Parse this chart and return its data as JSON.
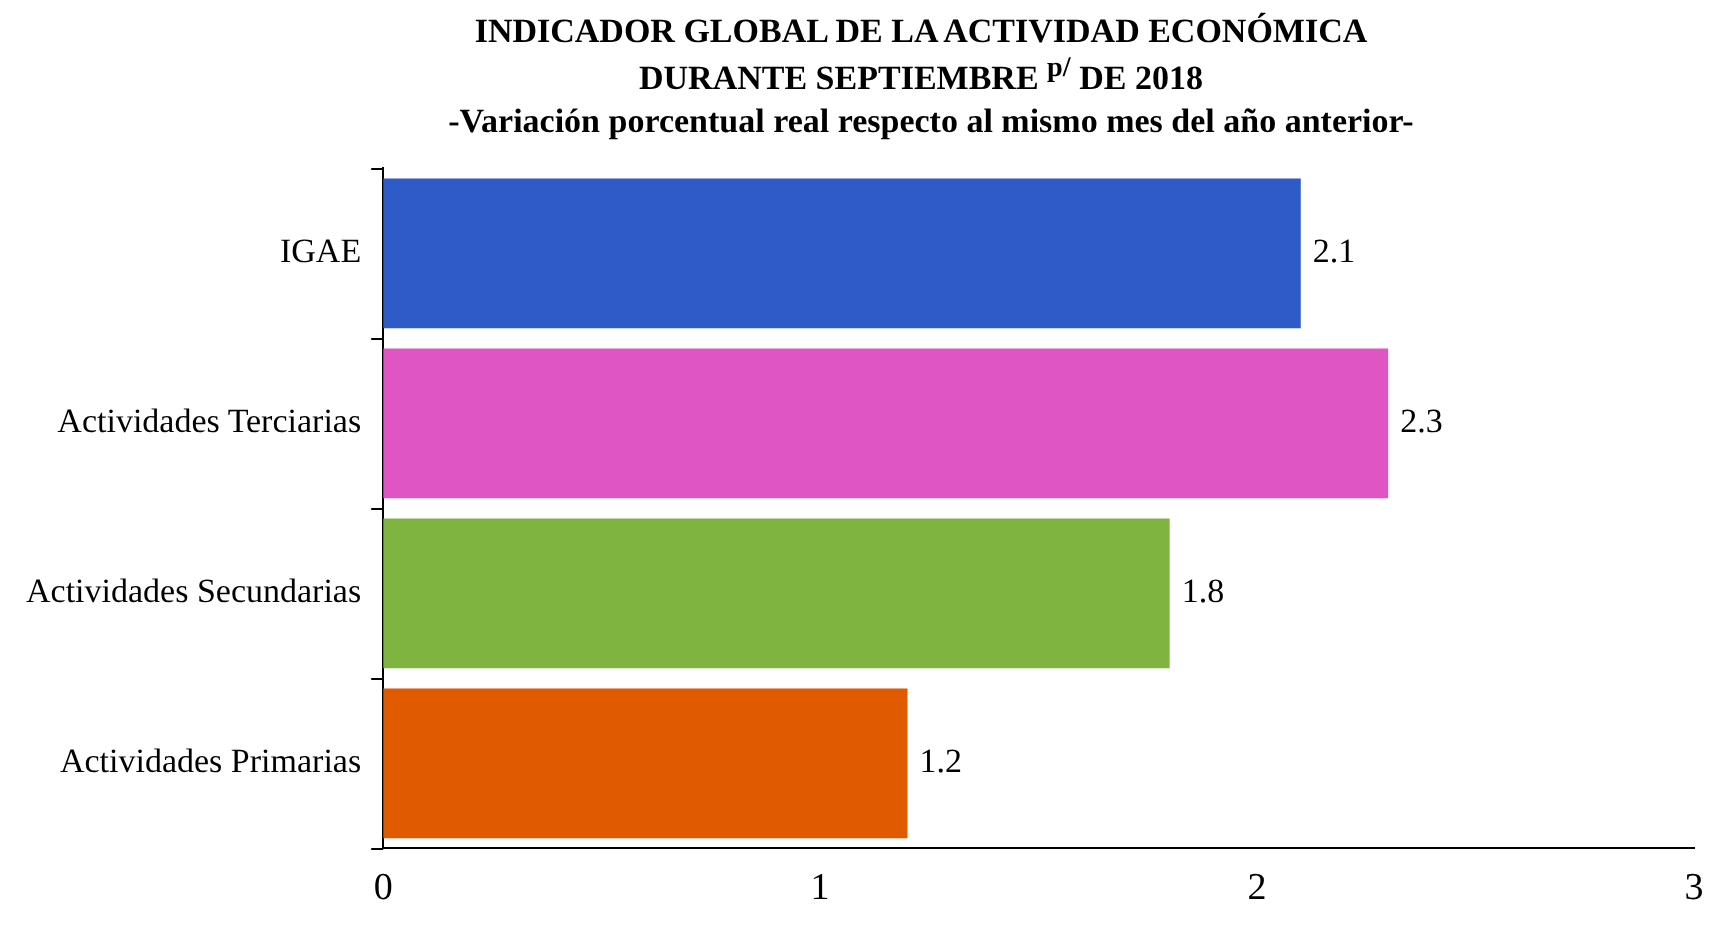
{
  "chart_data": {
    "type": "bar",
    "orientation": "horizontal",
    "title": "INDICADOR GLOBAL DE LA ACTIVIDAD ECONÓMICA DURANTE SEPTIEMBRE $^{p/}$ DE 2018",
    "subtitle": "-Variación porcentual real respecto al mismo mes del año anterior-",
    "categories": [
      "IGAE",
      "Actividades Terciarias",
      "Actividades Secundarias",
      "Actividades Primarias"
    ],
    "values": [
      2.1,
      2.3,
      1.8,
      1.2
    ],
    "colors": [
      "#2f5bc8",
      "#e055c4",
      "#80b441",
      "#e05a00"
    ],
    "xlim": [
      0,
      3
    ],
    "xticks": [
      0,
      1,
      2,
      3
    ],
    "data_labels": true,
    "legend": false
  }
}
